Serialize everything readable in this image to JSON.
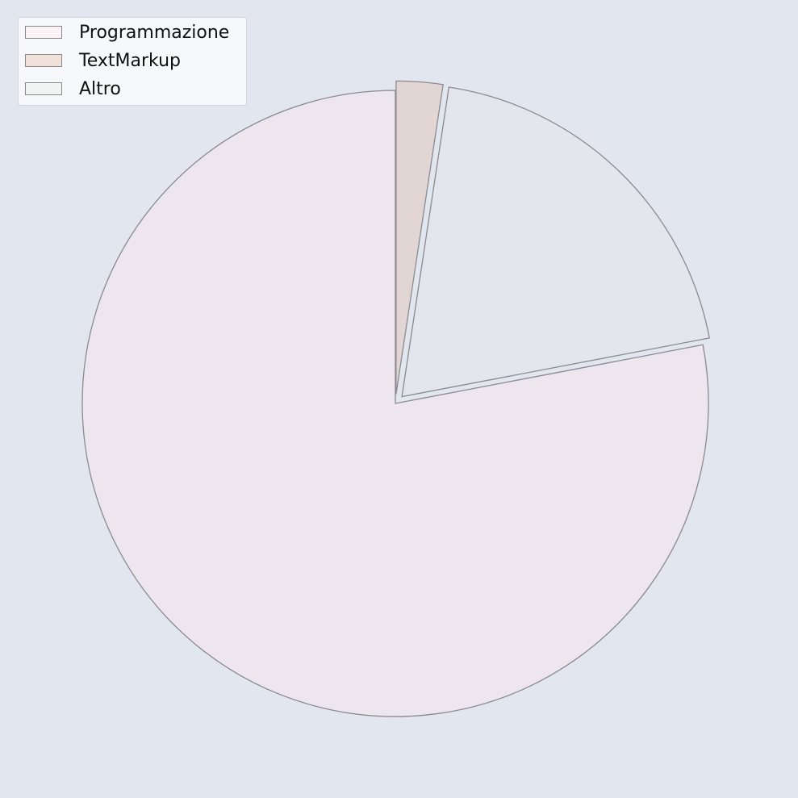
{
  "chart_data": {
    "type": "pie",
    "title": "",
    "start_angle_deg": 90,
    "direction": "counterclockwise",
    "slices": [
      {
        "label": "Programmazione",
        "value": 78.0,
        "color": "#eee6ee",
        "legend_color": "#faf2f5",
        "explode": 0.0
      },
      {
        "label": "Altro",
        "value": 19.6,
        "color": "#e4e6ed",
        "legend_color": "#f2f3f3",
        "explode": 0.03
      },
      {
        "label": "TextMarkup",
        "value": 2.4,
        "color": "#e2d6d4",
        "legend_color": "#f0e2da",
        "explode": 0.03
      }
    ],
    "legend": {
      "position": "top-left",
      "entries": [
        "Programmazione",
        "TextMarkup",
        "Altro"
      ]
    },
    "edge_color": "#8a8a90"
  }
}
